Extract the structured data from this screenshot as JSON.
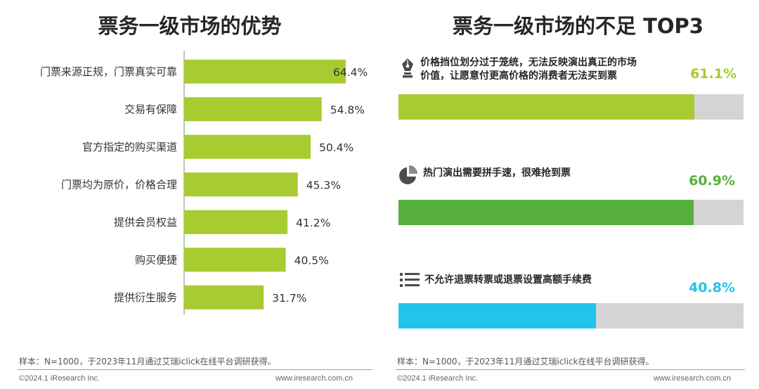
{
  "left": {
    "title": "票务一级市场的优势",
    "note": "样本：N=1000，于2023年11月通过艾瑞iclick在线平台调研获得。",
    "footer_left": "©2024.1 iResearch Inc.",
    "footer_right": "www.iresearch.com.cn"
  },
  "right": {
    "title": "票务一级市场的不足 TOP3",
    "note": "样本：N=1000，于2023年11月通过艾瑞iclick在线平台调研获得。",
    "footer_left": "©2024.1 iResearch Inc.",
    "footer_right": "www.iresearch.com.cn",
    "items": [
      {
        "label_line1": "价格挡位划分过于笼统，无法反映演出真正的市场",
        "label_line2": "价值，让愿意付更高价格的消费者无法买到票",
        "pct_text": "61.1%",
        "icon": "pen-nib-icon"
      },
      {
        "label_line1": "热门演出需要拼手速，很难抢到票",
        "label_line2": "",
        "pct_text": "60.9%",
        "icon": "pie-chart-icon"
      },
      {
        "label_line1": "不允许退票转票或退票设置高额手续费",
        "label_line2": "",
        "pct_text": "40.8%",
        "icon": "list-icon"
      }
    ]
  },
  "colors": {
    "left_bar": "#a6cc2f",
    "right_bar_1": "#a6cc2f",
    "right_bar_2": "#58b03c",
    "right_bar_3": "#21c4ea",
    "pct_1": "#a6cc2f",
    "pct_2": "#58b03c",
    "pct_3": "#21c4ea",
    "track": "#d4d4d4"
  },
  "chart_data": [
    {
      "type": "bar",
      "orientation": "horizontal",
      "title": "票务一级市场的优势",
      "categories": [
        "门票来源正规，门票真实可靠",
        "交易有保障",
        "官方指定的购买渠道",
        "门票均为原价，价格合理",
        "提供会员权益",
        "购买便捷",
        "提供衍生服务"
      ],
      "values": [
        64.4,
        54.8,
        50.4,
        45.3,
        41.2,
        40.5,
        31.7
      ],
      "value_labels": [
        "64.4%",
        "54.8%",
        "50.4%",
        "45.3%",
        "41.2%",
        "40.5%",
        "31.7%"
      ],
      "unit": "%"
    },
    {
      "type": "bar",
      "orientation": "horizontal",
      "title": "票务一级市场的不足 TOP3",
      "categories": [
        "价格挡位划分过于笼统，无法反映演出真正的市场价值，让愿意付更高价格的消费者无法买到票",
        "热门演出需要拼手速，很难抢到票",
        "不允许退票转票或退票设置高额手续费"
      ],
      "values": [
        61.1,
        60.9,
        40.8
      ],
      "value_labels": [
        "61.1%",
        "60.9%",
        "40.8%"
      ],
      "unit": "%"
    }
  ]
}
